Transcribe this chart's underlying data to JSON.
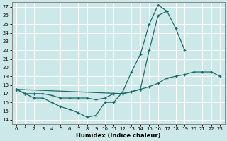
{
  "xlabel": "Humidex (Indice chaleur)",
  "background_color": "#cde8e8",
  "grid_color": "#b0d0d0",
  "line_color": "#1a6b6b",
  "xlim": [
    -0.5,
    23.5
  ],
  "ylim": [
    13.5,
    27.5
  ],
  "xticks": [
    0,
    1,
    2,
    3,
    4,
    5,
    6,
    7,
    8,
    9,
    10,
    11,
    12,
    13,
    14,
    15,
    16,
    17,
    18,
    19,
    20,
    21,
    22,
    23
  ],
  "yticks": [
    14,
    15,
    16,
    17,
    18,
    19,
    20,
    21,
    22,
    23,
    24,
    25,
    26,
    27
  ],
  "line1_y": [
    17.5,
    17.0,
    16.5,
    16.5,
    16.0,
    15.5,
    15.2,
    14.8,
    14.3,
    14.5,
    16.0,
    16.0,
    17.2,
    19.5,
    21.5,
    25.0,
    27.2,
    26.5,
    null,
    null,
    null,
    null,
    null,
    null
  ],
  "line2_y": [
    17.5,
    17.0,
    17.0,
    17.0,
    16.8,
    16.5,
    16.5,
    16.5,
    16.5,
    16.3,
    16.5,
    17.0,
    17.0,
    17.2,
    17.5,
    17.8,
    18.2,
    18.8,
    19.0,
    19.2,
    19.5,
    19.5,
    19.5,
    19.0
  ],
  "line3_y": [
    17.5,
    null,
    null,
    null,
    null,
    null,
    null,
    null,
    null,
    null,
    null,
    null,
    17.0,
    null,
    17.5,
    22.0,
    26.0,
    26.5,
    24.5,
    22.0,
    null,
    null,
    null,
    null
  ]
}
